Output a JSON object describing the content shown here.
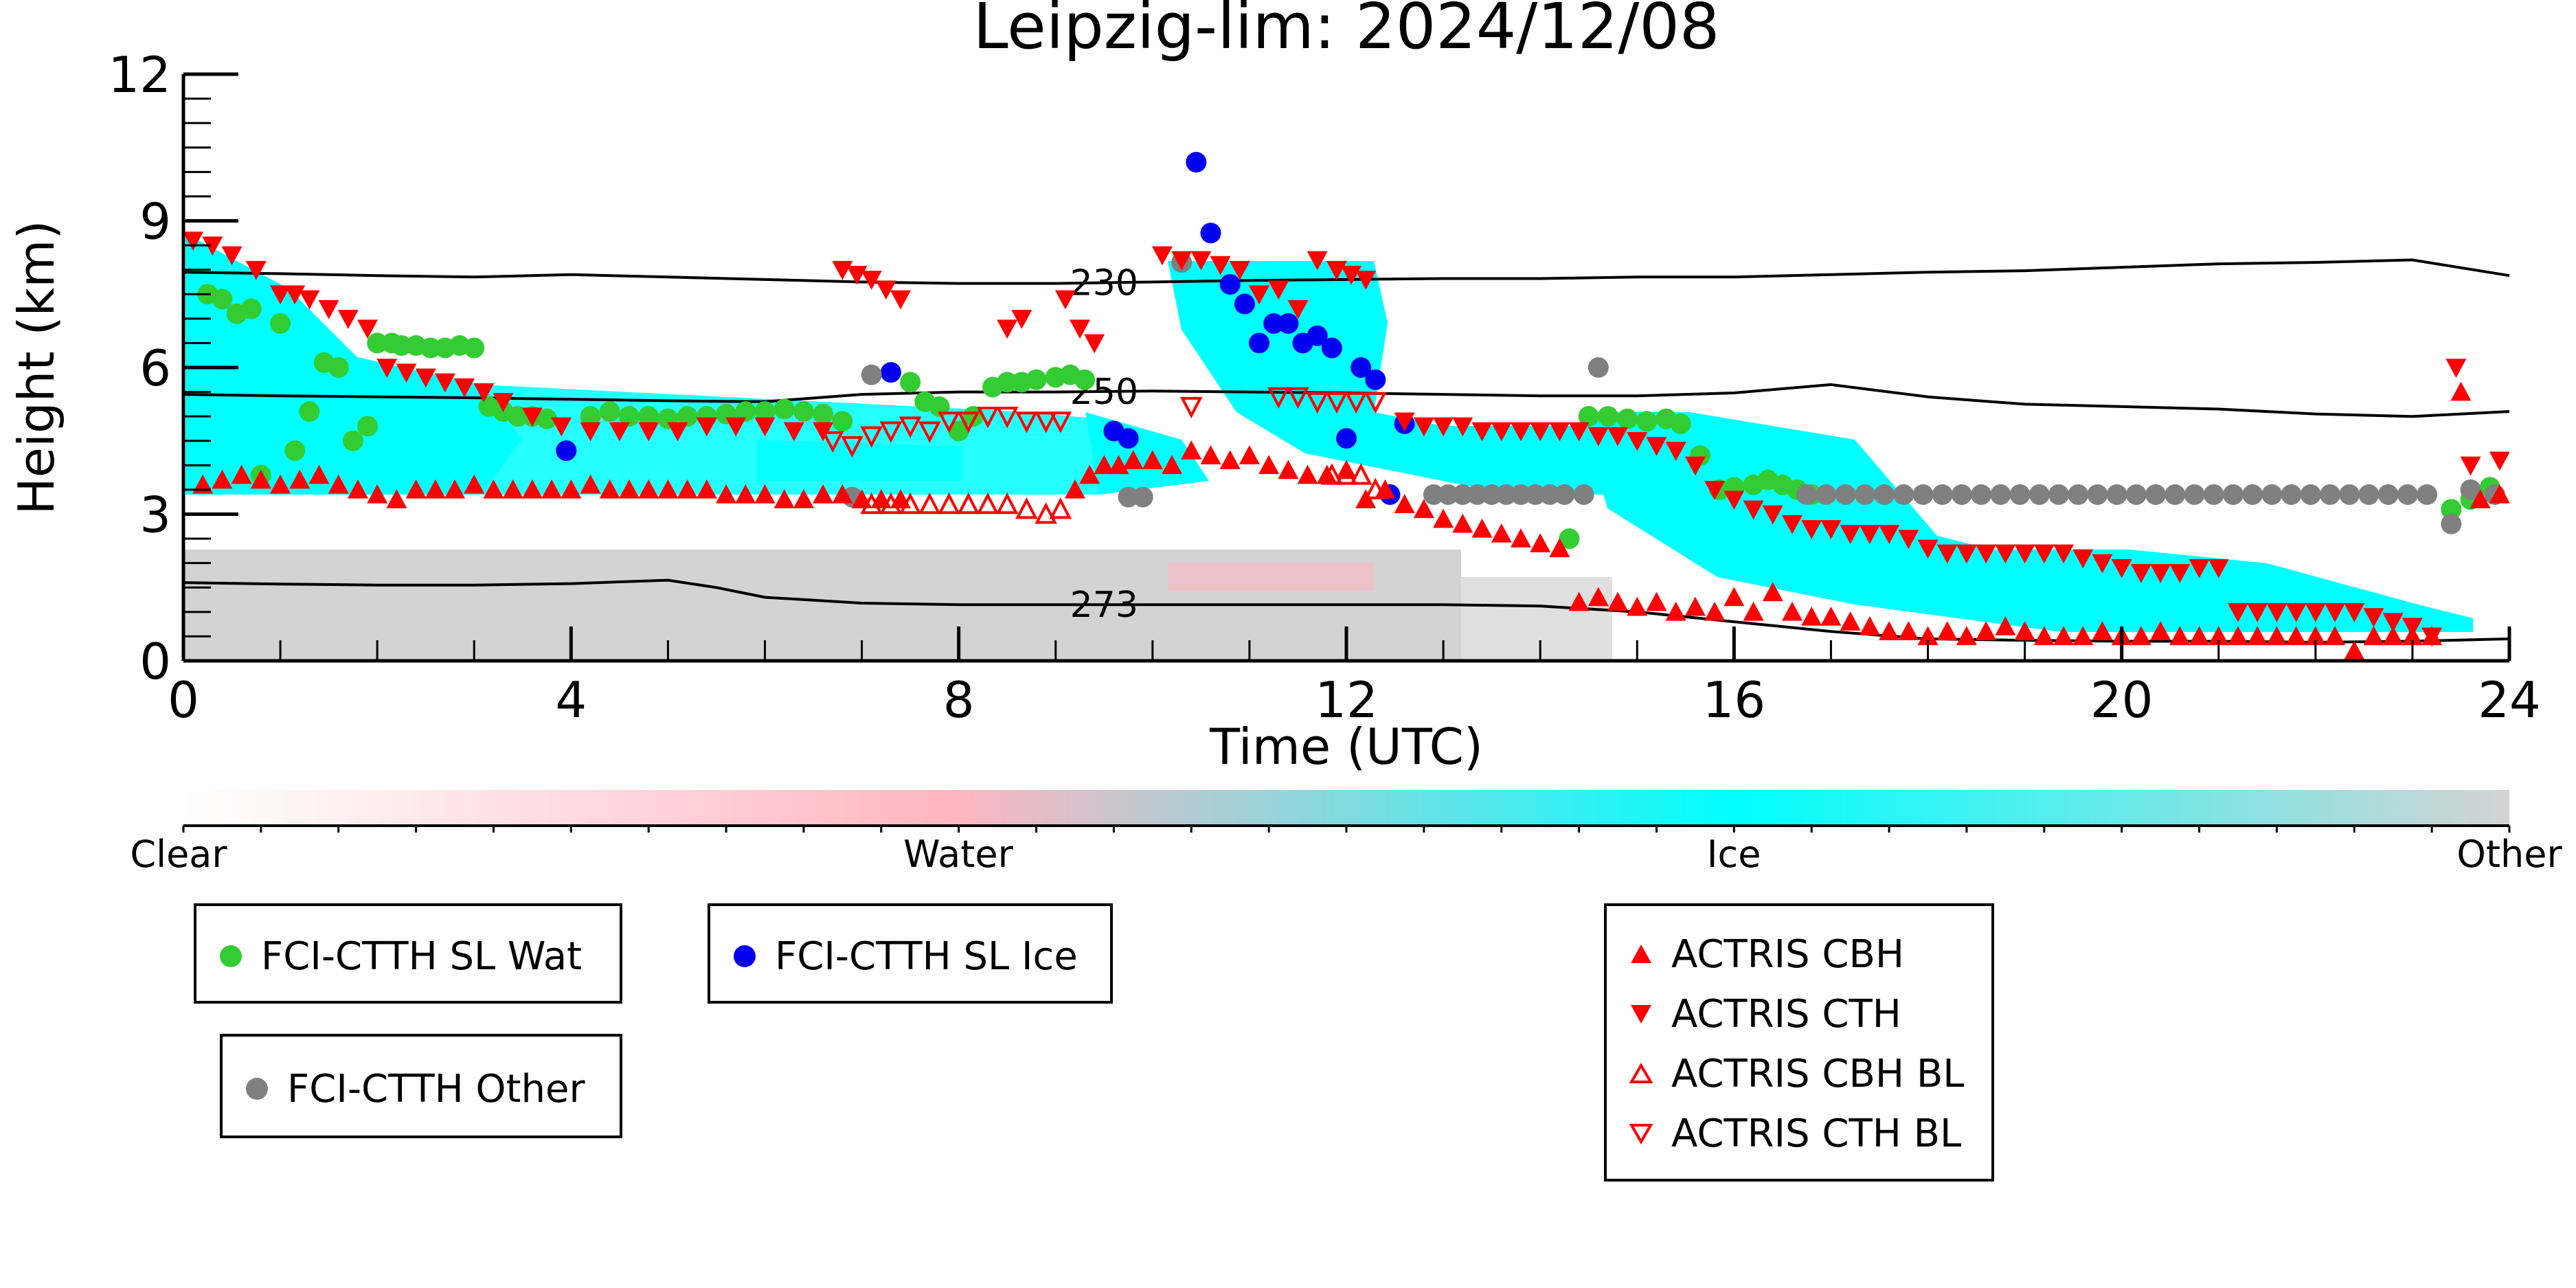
{
  "chart_data": {
    "type": "scatter",
    "title": "Leipzig-lim: 2024/12/08",
    "xlabel": "Time (UTC)",
    "ylabel": "Height (km)",
    "xlim": [
      0,
      24
    ],
    "ylim": [
      0,
      12
    ],
    "xticks": [
      0,
      4,
      8,
      12,
      16,
      20,
      24
    ],
    "yticks": [
      0,
      3,
      6,
      9,
      12
    ],
    "colorbar": {
      "labels": [
        "Clear",
        "Water",
        "Ice",
        "Other"
      ],
      "colors": [
        "#ffffff",
        "#ffb6c1",
        "#00ffff",
        "#d3d3d3"
      ]
    },
    "isotherms": [
      {
        "label": "230",
        "label_x": 9.5,
        "x": [
          0,
          1,
          2,
          3,
          4,
          5,
          6,
          7,
          8,
          9,
          10,
          11,
          12,
          13,
          14,
          15,
          16,
          17,
          18,
          19,
          20,
          21,
          22,
          23,
          24
        ],
        "y": [
          7.95,
          7.92,
          7.88,
          7.85,
          7.9,
          7.85,
          7.8,
          7.75,
          7.72,
          7.72,
          7.75,
          7.78,
          7.8,
          7.82,
          7.82,
          7.85,
          7.85,
          7.9,
          7.95,
          7.98,
          8.05,
          8.12,
          8.15,
          8.2,
          7.88
        ]
      },
      {
        "label": "250",
        "label_x": 9.5,
        "x": [
          0,
          1,
          2,
          3,
          4,
          5,
          6,
          7,
          8,
          9,
          10,
          11,
          12,
          13,
          14,
          15,
          16,
          17,
          18,
          19,
          20,
          21,
          22,
          23,
          24
        ],
        "y": [
          5.45,
          5.42,
          5.4,
          5.38,
          5.35,
          5.32,
          5.3,
          5.45,
          5.5,
          5.5,
          5.52,
          5.5,
          5.48,
          5.45,
          5.42,
          5.42,
          5.48,
          5.65,
          5.4,
          5.25,
          5.2,
          5.15,
          5.05,
          5.0,
          5.1
        ]
      },
      {
        "label": "273",
        "label_x": 9.5,
        "x": [
          0,
          1,
          2,
          3,
          4,
          5,
          5.5,
          6,
          7,
          8,
          9,
          10,
          11,
          12,
          13,
          14,
          15,
          16,
          17,
          18,
          19,
          20,
          21,
          22,
          23,
          24
        ],
        "y": [
          1.6,
          1.57,
          1.55,
          1.55,
          1.58,
          1.65,
          1.5,
          1.3,
          1.18,
          1.15,
          1.15,
          1.15,
          1.15,
          1.15,
          1.15,
          1.12,
          1.0,
          0.8,
          0.6,
          0.45,
          0.42,
          0.4,
          0.4,
          0.38,
          0.4,
          0.45
        ]
      }
    ],
    "series": [
      {
        "name": "FCI-CTTH SL Wat",
        "marker": "circle",
        "color": "#33cc33",
        "x": [
          0.25,
          0.4,
          0.55,
          0.7,
          0.8,
          1.0,
          1.15,
          1.3,
          1.45,
          1.6,
          1.75,
          1.9,
          2.0,
          2.15,
          2.25,
          2.4,
          2.55,
          2.7,
          2.85,
          3.0,
          3.15,
          3.3,
          3.45,
          3.6,
          3.75,
          4.2,
          4.4,
          4.6,
          4.8,
          5.0,
          5.2,
          5.4,
          5.6,
          5.8,
          6.0,
          6.2,
          6.4,
          6.6,
          6.8,
          7.5,
          7.65,
          7.8,
          8.0,
          8.15,
          8.35,
          8.5,
          8.65,
          8.8,
          9.0,
          9.15,
          9.3,
          14.3,
          14.5,
          14.7,
          14.9,
          15.1,
          15.3,
          15.45,
          15.65,
          15.85,
          16.0,
          16.2,
          16.35,
          16.5,
          16.65,
          16.8,
          23.4,
          23.6,
          23.8
        ],
        "y": [
          7.5,
          7.4,
          7.1,
          7.2,
          3.8,
          6.9,
          4.3,
          5.1,
          6.1,
          6.0,
          4.5,
          4.8,
          6.5,
          6.5,
          6.45,
          6.45,
          6.4,
          6.4,
          6.45,
          6.4,
          5.2,
          5.1,
          5.0,
          5.0,
          4.95,
          5.0,
          5.1,
          5.0,
          5.0,
          4.95,
          5.0,
          5.0,
          5.05,
          5.1,
          5.1,
          5.15,
          5.1,
          5.05,
          4.9,
          5.7,
          5.3,
          5.2,
          4.7,
          5.0,
          5.6,
          5.7,
          5.7,
          5.75,
          5.8,
          5.85,
          5.75,
          2.5,
          5.0,
          5.0,
          4.95,
          4.9,
          4.95,
          4.85,
          4.2,
          3.5,
          3.55,
          3.6,
          3.7,
          3.6,
          3.5,
          3.4,
          3.1,
          3.3,
          3.55
        ]
      },
      {
        "name": "FCI-CTTH SL Ice",
        "marker": "circle",
        "color": "#0000ee",
        "x": [
          3.95,
          7.3,
          9.6,
          9.75,
          10.45,
          10.6,
          10.8,
          10.95,
          11.1,
          11.25,
          11.4,
          11.55,
          11.7,
          11.85,
          12.0,
          12.15,
          12.3,
          12.45,
          12.6
        ],
        "y": [
          4.3,
          5.9,
          4.7,
          4.55,
          10.2,
          8.75,
          7.7,
          7.3,
          6.5,
          6.9,
          6.9,
          6.5,
          6.65,
          6.4,
          4.55,
          6.0,
          5.75,
          3.4,
          4.85
        ]
      },
      {
        "name": "FCI-CTTH Other",
        "marker": "circle",
        "color": "#808080",
        "x": [
          6.9,
          7.1,
          9.75,
          9.9,
          10.3,
          12.9,
          13.05,
          13.2,
          13.35,
          13.5,
          13.65,
          13.8,
          13.95,
          14.1,
          14.25,
          14.45,
          14.6,
          16.75,
          16.95,
          17.15,
          17.35,
          17.55,
          17.75,
          17.95,
          18.15,
          18.35,
          18.55,
          18.75,
          18.95,
          19.15,
          19.35,
          19.55,
          19.75,
          19.95,
          20.15,
          20.35,
          20.55,
          20.75,
          20.95,
          21.15,
          21.35,
          21.55,
          21.75,
          21.95,
          22.15,
          22.35,
          22.55,
          22.75,
          22.95,
          23.15,
          23.4,
          23.6,
          23.85
        ],
        "y": [
          3.35,
          5.85,
          3.35,
          3.35,
          8.15,
          3.4,
          3.4,
          3.4,
          3.4,
          3.4,
          3.4,
          3.4,
          3.4,
          3.4,
          3.4,
          3.4,
          6.0,
          3.4,
          3.4,
          3.4,
          3.4,
          3.4,
          3.4,
          3.4,
          3.4,
          3.4,
          3.4,
          3.4,
          3.4,
          3.4,
          3.4,
          3.4,
          3.4,
          3.4,
          3.4,
          3.4,
          3.4,
          3.4,
          3.4,
          3.4,
          3.4,
          3.4,
          3.4,
          3.4,
          3.4,
          3.4,
          3.4,
          3.4,
          3.4,
          3.4,
          2.8,
          3.5,
          3.4
        ]
      },
      {
        "name": "ACTRIS CBH",
        "marker": "triangle-up",
        "color": "#ff0000",
        "x": [
          0.2,
          0.4,
          0.6,
          0.8,
          1.0,
          1.2,
          1.4,
          1.6,
          1.8,
          2.0,
          2.2,
          2.4,
          2.6,
          2.8,
          3.0,
          3.2,
          3.4,
          3.6,
          3.8,
          4.0,
          4.2,
          4.4,
          4.6,
          4.8,
          5.0,
          5.2,
          5.4,
          5.6,
          5.8,
          6.0,
          6.2,
          6.4,
          6.6,
          6.8,
          7.0,
          7.2,
          7.4,
          9.2,
          9.35,
          9.5,
          9.65,
          9.8,
          10.0,
          10.2,
          10.4,
          10.6,
          10.8,
          11.0,
          11.2,
          11.4,
          11.6,
          11.8,
          12.0,
          12.2,
          12.4,
          12.6,
          12.8,
          13.0,
          13.2,
          13.4,
          13.6,
          13.8,
          14.0,
          14.2,
          14.4,
          14.6,
          14.8,
          15.0,
          15.2,
          15.4,
          15.6,
          15.8,
          16.0,
          16.2,
          16.4,
          16.6,
          16.8,
          17.0,
          17.2,
          17.4,
          17.6,
          17.8,
          18.0,
          18.2,
          18.4,
          18.6,
          18.8,
          19.0,
          19.2,
          19.4,
          19.6,
          19.8,
          20.0,
          20.2,
          20.4,
          20.6,
          20.8,
          21.0,
          21.2,
          21.4,
          21.6,
          21.8,
          22.0,
          22.2,
          22.4,
          22.6,
          22.8,
          23.0,
          23.2,
          23.5,
          23.7,
          23.9
        ],
        "y": [
          3.6,
          3.7,
          3.8,
          3.7,
          3.6,
          3.7,
          3.8,
          3.6,
          3.5,
          3.4,
          3.3,
          3.5,
          3.5,
          3.5,
          3.6,
          3.5,
          3.5,
          3.5,
          3.5,
          3.5,
          3.6,
          3.5,
          3.5,
          3.5,
          3.5,
          3.5,
          3.5,
          3.4,
          3.4,
          3.4,
          3.3,
          3.3,
          3.4,
          3.4,
          3.3,
          3.3,
          3.3,
          3.5,
          3.8,
          4.0,
          4.0,
          4.1,
          4.1,
          4.0,
          4.3,
          4.2,
          4.1,
          4.2,
          4.0,
          3.9,
          3.8,
          3.8,
          3.9,
          3.3,
          3.5,
          3.2,
          3.1,
          2.9,
          2.8,
          2.7,
          2.6,
          2.5,
          2.4,
          2.3,
          1.2,
          1.3,
          1.2,
          1.1,
          1.2,
          1.0,
          1.1,
          1.0,
          1.3,
          1.0,
          1.4,
          1.0,
          0.9,
          0.9,
          0.8,
          0.7,
          0.6,
          0.6,
          0.5,
          0.6,
          0.5,
          0.6,
          0.7,
          0.6,
          0.5,
          0.5,
          0.5,
          0.6,
          0.5,
          0.5,
          0.6,
          0.5,
          0.5,
          0.5,
          0.5,
          0.5,
          0.5,
          0.5,
          0.5,
          0.5,
          0.2,
          0.5,
          0.5,
          0.5,
          0.5,
          5.5,
          3.3,
          3.4
        ]
      },
      {
        "name": "ACTRIS CTH",
        "marker": "triangle-down",
        "color": "#ff0000",
        "x": [
          0.1,
          0.3,
          0.5,
          0.75,
          1.0,
          1.15,
          1.3,
          1.5,
          1.7,
          1.9,
          2.1,
          2.3,
          2.5,
          2.7,
          2.9,
          3.1,
          3.3,
          3.6,
          3.9,
          4.2,
          4.5,
          4.8,
          5.1,
          5.4,
          5.7,
          6.0,
          6.3,
          6.6,
          6.8,
          6.95,
          7.1,
          7.25,
          7.4,
          8.5,
          8.65,
          9.1,
          9.25,
          9.4,
          10.1,
          10.3,
          10.5,
          10.7,
          10.9,
          11.1,
          11.3,
          11.5,
          11.7,
          11.9,
          12.05,
          12.2,
          12.6,
          12.8,
          13.0,
          13.2,
          13.4,
          13.6,
          13.8,
          14.0,
          14.2,
          14.4,
          14.6,
          14.8,
          15.0,
          15.2,
          15.4,
          15.6,
          15.8,
          16.0,
          16.2,
          16.4,
          16.6,
          16.8,
          17.0,
          17.2,
          17.4,
          17.6,
          17.8,
          18.0,
          18.2,
          18.4,
          18.6,
          18.8,
          19.0,
          19.2,
          19.4,
          19.6,
          19.8,
          20.0,
          20.2,
          20.4,
          20.6,
          20.8,
          21.0,
          21.2,
          21.4,
          21.6,
          21.8,
          22.0,
          22.2,
          22.4,
          22.6,
          22.8,
          23.0,
          23.2,
          23.45,
          23.6,
          23.9
        ],
        "y": [
          8.6,
          8.5,
          8.3,
          8.0,
          7.5,
          7.5,
          7.4,
          7.2,
          7.0,
          6.8,
          6.0,
          5.9,
          5.8,
          5.7,
          5.6,
          5.5,
          5.3,
          5.0,
          4.8,
          4.7,
          4.7,
          4.7,
          4.7,
          4.8,
          4.8,
          4.8,
          4.7,
          4.7,
          8.0,
          7.9,
          7.8,
          7.6,
          7.4,
          6.8,
          7.0,
          7.4,
          6.8,
          6.5,
          8.3,
          8.2,
          8.2,
          8.1,
          8.0,
          7.5,
          7.6,
          7.2,
          8.2,
          8.0,
          7.9,
          7.8,
          4.9,
          4.8,
          4.8,
          4.8,
          4.7,
          4.7,
          4.7,
          4.7,
          4.7,
          4.7,
          4.6,
          4.6,
          4.5,
          4.4,
          4.3,
          4.0,
          3.5,
          3.3,
          3.1,
          3.0,
          2.8,
          2.7,
          2.7,
          2.6,
          2.6,
          2.6,
          2.5,
          2.3,
          2.2,
          2.2,
          2.2,
          2.2,
          2.2,
          2.2,
          2.2,
          2.1,
          2.0,
          1.9,
          1.8,
          1.8,
          1.8,
          1.9,
          1.9,
          1.0,
          1.0,
          1.0,
          1.0,
          1.0,
          1.0,
          1.0,
          0.9,
          0.8,
          0.7,
          0.5,
          6.0,
          4.0,
          4.1
        ]
      },
      {
        "name": "ACTRIS CBH BL",
        "marker": "triangle-up-open",
        "color": "#ff0000",
        "x": [
          7.1,
          7.3,
          7.5,
          7.7,
          7.9,
          8.1,
          8.3,
          8.5,
          8.7,
          8.9,
          9.05,
          11.85,
          12.0,
          12.15,
          12.3
        ],
        "y": [
          3.2,
          3.2,
          3.2,
          3.2,
          3.2,
          3.2,
          3.2,
          3.2,
          3.1,
          3.0,
          3.1,
          3.8,
          3.8,
          3.8,
          3.5
        ]
      },
      {
        "name": "ACTRIS CTH BL",
        "marker": "triangle-down-open",
        "color": "#ff0000",
        "x": [
          6.7,
          6.9,
          7.1,
          7.3,
          7.5,
          7.7,
          7.9,
          8.1,
          8.3,
          8.5,
          8.7,
          8.9,
          9.05,
          10.4,
          11.3,
          11.5,
          11.7,
          11.9,
          12.1,
          12.3
        ],
        "y": [
          4.5,
          4.4,
          4.6,
          4.7,
          4.8,
          4.7,
          4.9,
          4.9,
          5.0,
          5.0,
          4.9,
          4.9,
          4.9,
          5.2,
          5.4,
          5.4,
          5.3,
          5.3,
          5.3,
          5.3
        ]
      }
    ]
  }
}
